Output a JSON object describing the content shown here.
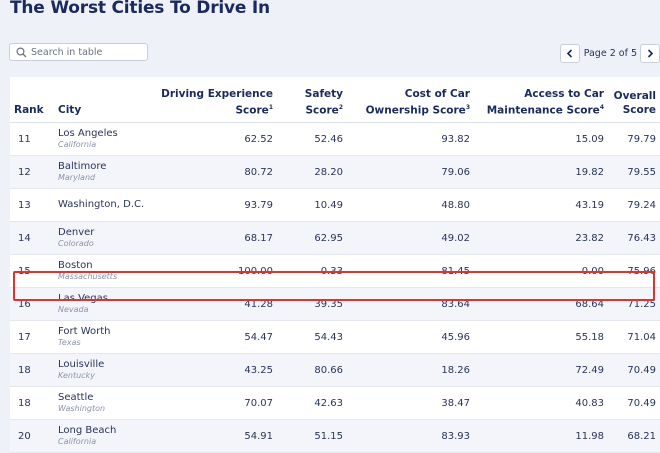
{
  "title": "The Worst Cities To Drive In",
  "search": {
    "placeholder": "Search in table",
    "value": ""
  },
  "pager": {
    "label": "Page 2 of 5"
  },
  "columns": {
    "rank": "Rank",
    "city": "City",
    "driving_line1": "Driving Experience",
    "driving_line2": "Score",
    "driving_note": "1",
    "safety_line1": "Safety",
    "safety_line2": "Score",
    "safety_note": "2",
    "cost_line1": "Cost of Car",
    "cost_line2": "Ownership Score",
    "cost_note": "3",
    "access_line1": "Access to Car",
    "access_line2": "Maintenance Score",
    "access_note": "4",
    "overall_line1": "Overall",
    "overall_line2": "Score"
  },
  "rows": [
    {
      "rank": "11",
      "city": "Los Angeles",
      "state": "California",
      "driving": "62.52",
      "safety": "52.46",
      "cost": "93.82",
      "access": "15.09",
      "overall": "79.79"
    },
    {
      "rank": "12",
      "city": "Baltimore",
      "state": "Maryland",
      "driving": "80.72",
      "safety": "28.20",
      "cost": "79.06",
      "access": "19.82",
      "overall": "79.55"
    },
    {
      "rank": "13",
      "city": "Washington, D.C.",
      "state": "",
      "driving": "93.79",
      "safety": "10.49",
      "cost": "48.80",
      "access": "43.19",
      "overall": "79.24"
    },
    {
      "rank": "14",
      "city": "Denver",
      "state": "Colorado",
      "driving": "68.17",
      "safety": "62.95",
      "cost": "49.02",
      "access": "23.82",
      "overall": "76.43"
    },
    {
      "rank": "15",
      "city": "Boston",
      "state": "Massachusetts",
      "driving": "100.00",
      "safety": "0.33",
      "cost": "81.45",
      "access": "0.00",
      "overall": "75.96"
    },
    {
      "rank": "16",
      "city": "Las Vegas",
      "state": "Nevada",
      "driving": "41.28",
      "safety": "39.35",
      "cost": "83.64",
      "access": "68.64",
      "overall": "71.25"
    },
    {
      "rank": "17",
      "city": "Fort Worth",
      "state": "Texas",
      "driving": "54.47",
      "safety": "54.43",
      "cost": "45.96",
      "access": "55.18",
      "overall": "71.04"
    },
    {
      "rank": "18",
      "city": "Louisville",
      "state": "Kentucky",
      "driving": "43.25",
      "safety": "80.66",
      "cost": "18.26",
      "access": "72.49",
      "overall": "70.49"
    },
    {
      "rank": "18",
      "city": "Seattle",
      "state": "Washington",
      "driving": "70.07",
      "safety": "42.63",
      "cost": "38.47",
      "access": "40.83",
      "overall": "70.49"
    },
    {
      "rank": "20",
      "city": "Long Beach",
      "state": "California",
      "driving": "54.91",
      "safety": "51.15",
      "cost": "83.93",
      "access": "11.98",
      "overall": "68.21"
    }
  ],
  "colors": {
    "highlight": "#e0332e",
    "title": "#1b2a5e"
  },
  "icons": {
    "search": "search-icon",
    "prev": "chevron-left-icon",
    "next": "chevron-right-icon"
  }
}
